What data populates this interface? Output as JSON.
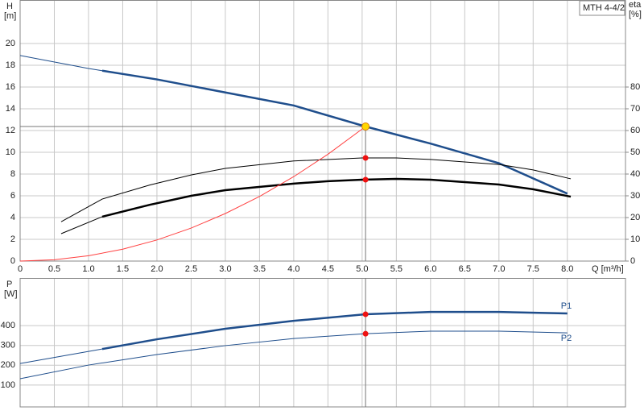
{
  "chart_data": [
    {
      "type": "line",
      "model": "MTH 4-4/2",
      "y_label": "H",
      "y_unit": "[m]",
      "y2_label": "eta",
      "y2_unit": "[%]",
      "x_label": "Q [m³/h]",
      "xlim": [
        0,
        8.85
      ],
      "ylim": [
        0,
        24
      ],
      "y2lim": [
        0,
        120
      ],
      "xticks": [
        0,
        0.5,
        {
          "value": 1,
          "label": "1.0"
        },
        1.5,
        {
          "value": 2,
          "label": "2.0"
        },
        2.5,
        {
          "value": 3,
          "label": "3.0"
        },
        3.5,
        {
          "value": 4,
          "label": "4.0"
        },
        4.5,
        {
          "value": 5,
          "label": "5.0"
        },
        5.5,
        {
          "value": 6,
          "label": "6.0"
        },
        6.5,
        {
          "value": 7,
          "label": "7.0"
        },
        7.5,
        {
          "value": 8,
          "label": "8.0"
        }
      ],
      "yticks": [
        0,
        2,
        4,
        6,
        8,
        10,
        12,
        14,
        16,
        18,
        20
      ],
      "y2ticks": [
        0,
        10,
        20,
        30,
        40,
        50,
        60,
        70,
        80
      ],
      "grid": true,
      "crosshair": true,
      "series": [
        {
          "color": "#1f4e8c",
          "axis": "y",
          "thin_below": 1.2,
          "x": [
            0,
            1,
            1.2,
            2,
            3,
            4,
            5.05,
            6,
            7,
            8
          ],
          "values": [
            18.9,
            17.7,
            17.5,
            16.7,
            15.5,
            14.3,
            12.37,
            10.8,
            9.0,
            6.2
          ]
        },
        {
          "color": "#000000",
          "axis": "y2",
          "thin_below": 9,
          "x": [
            0.6,
            1.2,
            1.9,
            2.5,
            3,
            4,
            5,
            5.5,
            6,
            7,
            7.5,
            8.05
          ],
          "values": [
            18.1,
            28.5,
            35,
            39.6,
            42.6,
            46,
            47.4,
            47.4,
            46.7,
            44.4,
            41.9,
            37.8
          ]
        },
        {
          "color": "#000000",
          "axis": "y2",
          "thin_below": 1.2,
          "x": [
            0.6,
            1.2,
            1.9,
            2.5,
            3,
            4,
            4.5,
            5,
            5.5,
            6,
            7,
            7.5,
            8.05
          ],
          "values": [
            12.6,
            20.4,
            25.9,
            30,
            32.6,
            35.6,
            36.7,
            37.4,
            37.8,
            37.4,
            35.2,
            33,
            29.6
          ]
        },
        {
          "color": "#ff4040",
          "axis": "y",
          "thin_below": 9,
          "x": [
            0,
            0.5,
            1,
            1.5,
            2,
            2.5,
            3,
            3.5,
            4,
            4.5,
            5.05
          ],
          "values": [
            0,
            0.12,
            0.49,
            1.09,
            1.94,
            3.03,
            4.37,
            5.94,
            7.76,
            9.82,
            12.37
          ]
        }
      ],
      "markers": [
        {
          "x": 5.05,
          "value": 12.37,
          "axis": "y",
          "color": "#ffd700"
        },
        {
          "x": 5.05,
          "value": 47.4,
          "axis": "y2",
          "color": "#ee1111"
        },
        {
          "x": 5.05,
          "value": 37.4,
          "axis": "y2",
          "color": "#ee1111"
        }
      ]
    },
    {
      "type": "line",
      "y_label": "P",
      "y_unit": "[W]",
      "xlim": [
        0,
        8.85
      ],
      "ylim": [
        -10,
        640
      ],
      "xticks": [
        0,
        0.5,
        1,
        1.5,
        2,
        2.5,
        3,
        3.5,
        4,
        4.5,
        5,
        5.5,
        6,
        6.5,
        7,
        7.5,
        8
      ],
      "yticks": [
        100,
        200,
        300,
        400
      ],
      "grid": true,
      "crosshair": true,
      "series": [
        {
          "name": "P1",
          "color": "#1f4e8c",
          "axis": "y",
          "thin_below": 1.2,
          "x": [
            0,
            1.2,
            2,
            3,
            4,
            5.05,
            6,
            7,
            8
          ],
          "values": [
            209,
            282,
            331,
            384,
            424,
            457,
            469,
            469,
            461
          ]
        },
        {
          "name": "P2",
          "color": "#1f4e8c",
          "axis": "y",
          "thin_below": 9,
          "x": [
            0,
            1,
            2,
            3,
            4,
            5.05,
            6,
            7,
            8
          ],
          "values": [
            132,
            201,
            254,
            299,
            335,
            359,
            372,
            372,
            363
          ]
        }
      ],
      "markers": [
        {
          "x": 5.05,
          "value": 457,
          "axis": "y",
          "color": "#ee1111"
        },
        {
          "x": 5.05,
          "value": 359,
          "axis": "y",
          "color": "#ee1111"
        }
      ]
    }
  ]
}
